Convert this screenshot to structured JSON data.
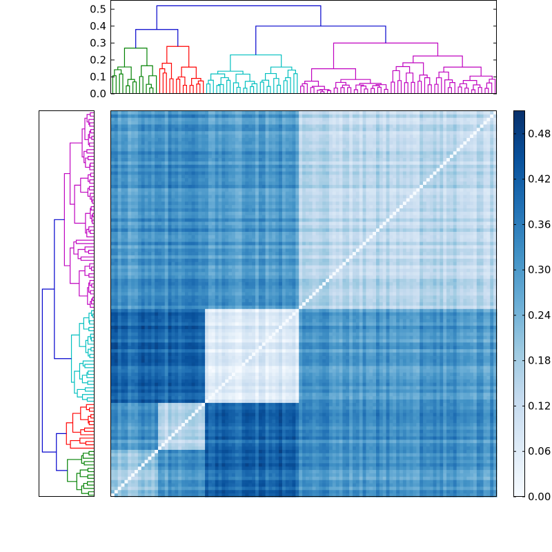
{
  "chart_data": [
    {
      "type": "dendrogram",
      "orientation": "top",
      "ylim": [
        0,
        0.55
      ],
      "yticks": [
        "0.0",
        "0.1",
        "0.2",
        "0.3",
        "0.4",
        "0.5"
      ],
      "ytick_values": [
        0,
        0.1,
        0.2,
        0.3,
        0.4,
        0.5
      ],
      "root_height": 0.52,
      "link_color_above_threshold": "#0000cc",
      "clusters": [
        {
          "color": "#008000",
          "leaves": 14,
          "height": 0.27,
          "order": 1
        },
        {
          "color": "#ff0000",
          "leaves": 14,
          "height": 0.28,
          "order": 2
        },
        {
          "color": "#00bfbf",
          "leaves": 28,
          "height": 0.23,
          "order": 3
        },
        {
          "color": "#bf00bf",
          "leaves": 59,
          "height": 0.3,
          "order": 4
        }
      ],
      "merges": [
        {
          "left": "A",
          "right": "B",
          "height": 0.38
        },
        {
          "left": "C",
          "right": "D",
          "height": 0.4
        },
        {
          "left": "AB",
          "right": "CD",
          "height": 0.52
        }
      ]
    },
    {
      "type": "dendrogram",
      "orientation": "left",
      "link_color_above_threshold": "#0000cc",
      "clusters_bottom_to_top": [
        {
          "color": "#008000",
          "leaves": 14,
          "height": 0.27
        },
        {
          "color": "#ff0000",
          "leaves": 14,
          "height": 0.28
        },
        {
          "color": "#00bfbf",
          "leaves": 28,
          "height": 0.23
        },
        {
          "color": "#bf00bf",
          "leaves": 59,
          "height": 0.3
        }
      ]
    },
    {
      "type": "heatmap",
      "rows": 115,
      "cols": 115,
      "colormap": "Blues",
      "vmin": 0.0,
      "vmax": 0.51,
      "diagonal": 0.0,
      "within_cluster_mean": {
        "green": 0.18,
        "red": 0.14,
        "cyan": 0.07,
        "magenta": 0.14
      },
      "between_cluster_mean": {
        "green-red": 0.3,
        "green-cyan": 0.4,
        "green-magenta": 0.3,
        "red-cyan": 0.4,
        "red-magenta": 0.32,
        "cyan-magenta": 0.3
      }
    },
    {
      "type": "colorbar",
      "colormap": "Blues",
      "range": [
        0.0,
        0.51
      ],
      "ticks": [
        "0.00",
        "0.06",
        "0.12",
        "0.18",
        "0.24",
        "0.30",
        "0.36",
        "0.42",
        "0.48"
      ],
      "tick_values": [
        0,
        0.06,
        0.12,
        0.18,
        0.24,
        0.3,
        0.36,
        0.42,
        0.48
      ]
    }
  ]
}
